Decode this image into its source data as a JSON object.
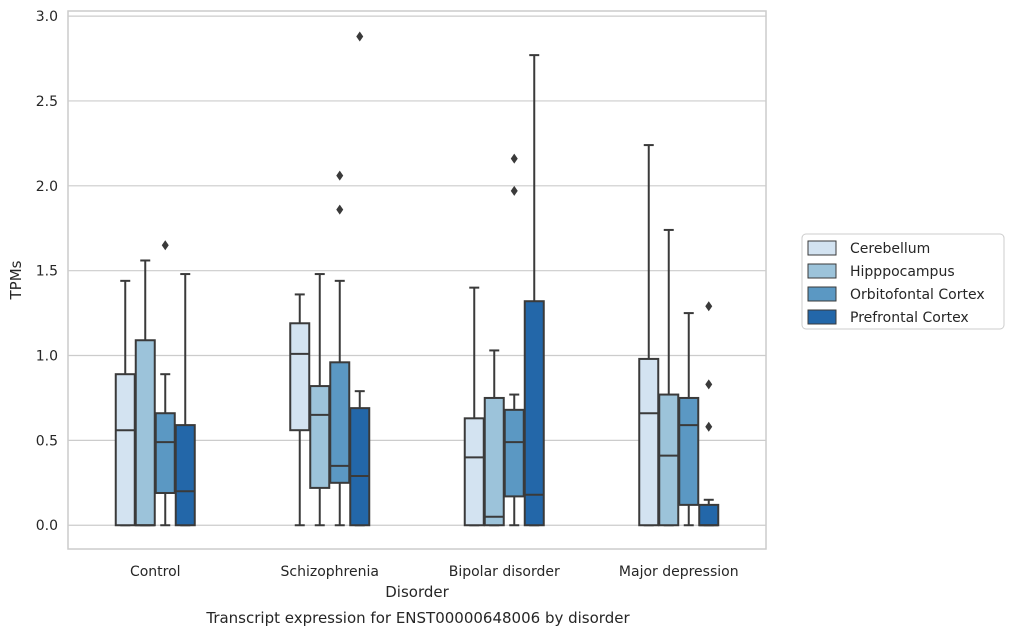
{
  "chart_data": {
    "type": "box",
    "title": "",
    "caption": "Transcript expression for ENST00000648006 by disorder",
    "xlabel": "Disorder",
    "ylabel": "TPMs",
    "ylim": [
      -0.14,
      3.03
    ],
    "yticks": [
      "0.0",
      "0.5",
      "1.0",
      "1.5",
      "2.0",
      "2.5",
      "3.0"
    ],
    "grid": "horizontal",
    "legend_position": "right",
    "categories": [
      "Control",
      "Schizophrenia",
      "Bipolar disorder",
      "Major depression"
    ],
    "series": [
      {
        "name": "Cerebellum",
        "color": "#d3e3f1",
        "boxes": [
          {
            "whisker_low": 0.0,
            "q1": 0.0,
            "median": 0.56,
            "q3": 0.89,
            "whisker_high": 1.44,
            "outliers": []
          },
          {
            "whisker_low": 0.0,
            "q1": 0.56,
            "median": 1.01,
            "q3": 1.19,
            "whisker_high": 1.36,
            "outliers": []
          },
          {
            "whisker_low": 0.0,
            "q1": 0.0,
            "median": 0.4,
            "q3": 0.63,
            "whisker_high": 1.4,
            "outliers": []
          },
          {
            "whisker_low": 0.0,
            "q1": 0.0,
            "median": 0.66,
            "q3": 0.98,
            "whisker_high": 2.24,
            "outliers": []
          }
        ]
      },
      {
        "name": "Hipppocampus",
        "color": "#9cc3da",
        "boxes": [
          {
            "whisker_low": 0.0,
            "q1": 0.0,
            "median": 0.0,
            "q3": 1.09,
            "whisker_high": 1.56,
            "outliers": []
          },
          {
            "whisker_low": 0.0,
            "q1": 0.22,
            "median": 0.65,
            "q3": 0.82,
            "whisker_high": 1.48,
            "outliers": []
          },
          {
            "whisker_low": 0.0,
            "q1": 0.0,
            "median": 0.05,
            "q3": 0.75,
            "whisker_high": 1.03,
            "outliers": []
          },
          {
            "whisker_low": 0.0,
            "q1": 0.0,
            "median": 0.41,
            "q3": 0.77,
            "whisker_high": 1.74,
            "outliers": []
          }
        ]
      },
      {
        "name": "Orbitofontal Cortex",
        "color": "#5b98c3",
        "boxes": [
          {
            "whisker_low": 0.0,
            "q1": 0.19,
            "median": 0.49,
            "q3": 0.66,
            "whisker_high": 0.89,
            "outliers": [
              1.65
            ]
          },
          {
            "whisker_low": 0.0,
            "q1": 0.25,
            "median": 0.35,
            "q3": 0.96,
            "whisker_high": 1.44,
            "outliers": [
              2.06,
              1.86
            ]
          },
          {
            "whisker_low": 0.0,
            "q1": 0.17,
            "median": 0.49,
            "q3": 0.68,
            "whisker_high": 0.77,
            "outliers": [
              2.16,
              1.97
            ]
          },
          {
            "whisker_low": 0.0,
            "q1": 0.12,
            "median": 0.59,
            "q3": 0.75,
            "whisker_high": 1.25,
            "outliers": []
          }
        ]
      },
      {
        "name": "Prefrontal Cortex",
        "color": "#2367a9",
        "boxes": [
          {
            "whisker_low": 0.0,
            "q1": 0.0,
            "median": 0.2,
            "q3": 0.59,
            "whisker_high": 1.48,
            "outliers": []
          },
          {
            "whisker_low": 0.0,
            "q1": 0.0,
            "median": 0.29,
            "q3": 0.69,
            "whisker_high": 0.79,
            "outliers": [
              2.88
            ]
          },
          {
            "whisker_low": 0.0,
            "q1": 0.0,
            "median": 0.18,
            "q3": 1.32,
            "whisker_high": 2.77,
            "outliers": []
          },
          {
            "whisker_low": 0.0,
            "q1": 0.0,
            "median": 0.0,
            "q3": 0.12,
            "whisker_high": 0.15,
            "outliers": [
              1.29,
              0.83,
              0.58
            ]
          }
        ]
      }
    ]
  }
}
